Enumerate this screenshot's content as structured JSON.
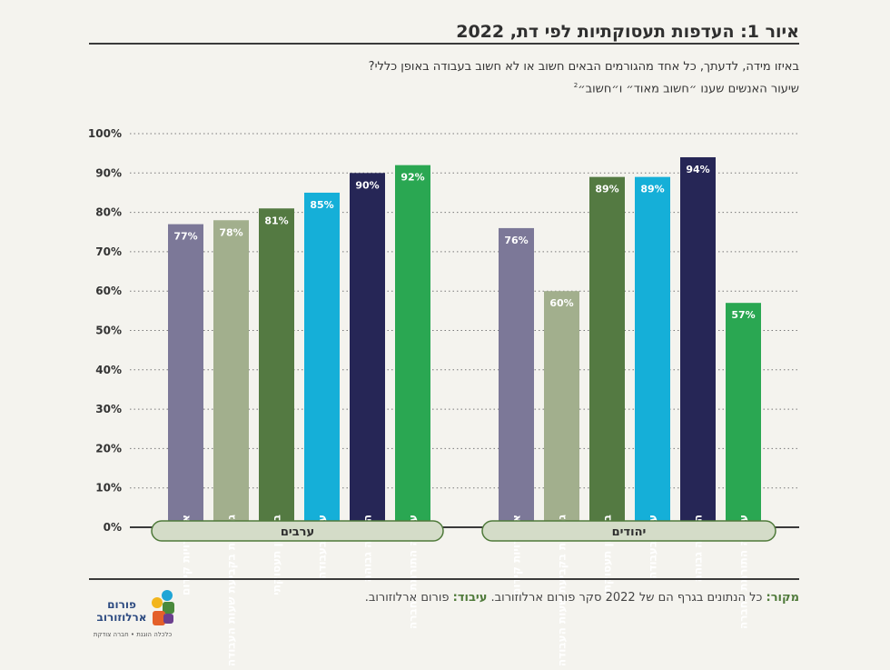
{
  "header": {
    "title": "איור 1: העדפות תעסוקתיות לפי דת, 2022",
    "question": "באיזו מידה, לדעתך, כל אחד מהגורמים הבאים חשוב או לא חשוב בעבודה באופן כללי?",
    "measure": "שיעור האנשים שענו ״חשוב מאוד״ ו״חשוב״",
    "measure_note": "2"
  },
  "chart_data": {
    "type": "bar",
    "ylim": [
      0,
      100
    ],
    "yticks": [
      "0%",
      "10%",
      "20%",
      "30%",
      "40%",
      "50%",
      "60%",
      "70%",
      "80%",
      "90%",
      "100%"
    ],
    "grid": true,
    "categories": [
      "עבודה התורמת לחברה",
      "הכנסה גבוהה",
      "עניין בעבודה",
      "ביטחון תעסוקתי",
      "גמישות בקביעת שעות העבודה",
      "אפשרויות קידום"
    ],
    "colors": [
      "#2aa752",
      "#262656",
      "#15afd8",
      "#547a42",
      "#a2af8d",
      "#7c7898"
    ],
    "groups": [
      {
        "name": "ערבים",
        "values": [
          92,
          90,
          85,
          81,
          78,
          77
        ],
        "labels": [
          "92%",
          "90%",
          "85%",
          "81%",
          "78%",
          "77%"
        ]
      },
      {
        "name": "יהודים",
        "values": [
          57,
          94,
          89,
          89,
          60,
          76
        ],
        "labels": [
          "57%",
          "94%",
          "89%",
          "89%",
          "60%",
          "76%"
        ]
      }
    ]
  },
  "footer": {
    "source_label": "מקור:",
    "source_text": " כל הנתונים בגרף הם של 2022 סקר פורום ארלוזורוב. ",
    "processing_label": "עיבוד:",
    "processing_text": " פורום ארלוזורוב."
  },
  "logo": {
    "name_line1": "פורום",
    "name_line2": "ארלוזורוב",
    "tagline": "כלכלה הוגנת • חברה צודקת"
  }
}
